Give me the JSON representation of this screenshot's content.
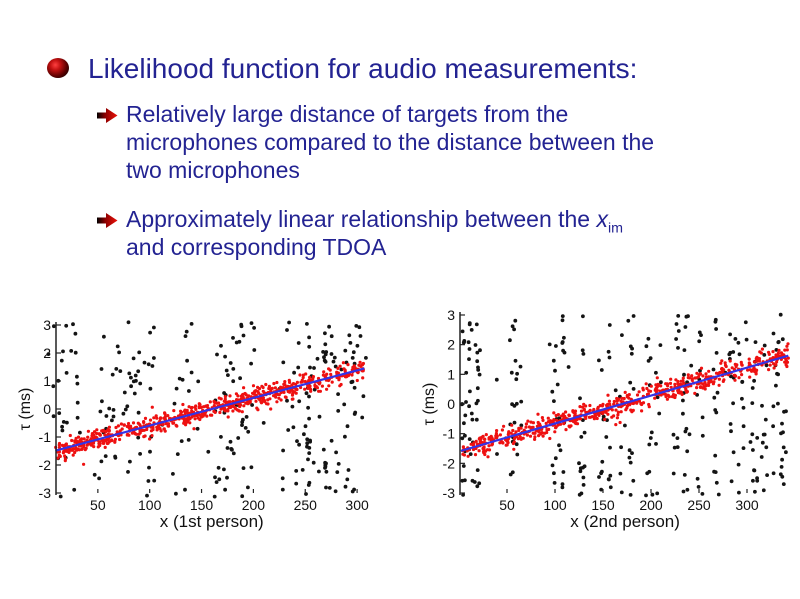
{
  "slide": {
    "background_color": "#ffffff",
    "text_color": "#232392",
    "title": "Likelihood function for audio measurements:",
    "bullets": [
      {
        "lines": [
          "Relatively large distance of targets from the",
          "microphones compared to the distance between the",
          "two microphones"
        ]
      },
      {
        "line1_prefix": "Approximately linear relationship between the ",
        "line1_var": "x",
        "line1_subscript": "im",
        "line2": "and corresponding TDOA"
      }
    ],
    "sphere_bullet_colors": [
      "#ff4040",
      "#c01010",
      "#5c0000",
      "#000000"
    ],
    "arrow_bullet_colors": {
      "tail": "#000000",
      "mid": "#8b0000",
      "head": "#ee1109"
    }
  },
  "chart_data": [
    {
      "type": "scatter",
      "title": "",
      "xlabel": "x (1st person)",
      "ylabel": "τ (ms)",
      "xlim": [
        0,
        310
      ],
      "ylim": [
        -3,
        3
      ],
      "xticks": [
        50,
        100,
        150,
        200,
        250,
        300
      ],
      "yticks": [
        3,
        2,
        1,
        0,
        -1,
        -2,
        -3
      ],
      "grid": false,
      "legend": "none",
      "series": [
        {
          "name": "clutter / spurious TDOA measurements",
          "marker": "dot",
          "color": "#141414",
          "count": 240,
          "y_range": [
            -3.15,
            3.1
          ],
          "cluster_centers": [
            12,
            20,
            30,
            56,
            66,
            76,
            86,
            100,
            126,
            136,
            166,
            176,
            186,
            196,
            230,
            240,
            250,
            258,
            266,
            274,
            284,
            294,
            302
          ],
          "cluster_x_jitter": 5,
          "extra_uniform_points": 30
        },
        {
          "name": "TDOA measurements of target (approx. linear in x)",
          "marker": "dot",
          "color": "#ee1111",
          "count": 680,
          "x_range": [
            9,
            307
          ],
          "trend_slope": 0.00987,
          "trend_intercept": -1.58,
          "noise_std": 0.17
        }
      ],
      "fit_line": {
        "color": "#3333e6",
        "x0": 9,
        "y0": -1.49,
        "x1": 307,
        "y1": 1.45
      }
    },
    {
      "type": "scatter",
      "title": "",
      "xlabel": "x (2nd person)",
      "ylabel": "τ (ms)",
      "xlim": [
        0,
        345
      ],
      "ylim": [
        -3,
        3
      ],
      "xticks": [
        50,
        100,
        150,
        200,
        250,
        300
      ],
      "yticks": [
        3,
        2,
        1,
        0,
        -1,
        -2,
        -3
      ],
      "grid": false,
      "legend": "none",
      "series": [
        {
          "name": "clutter / spurious TDOA measurements",
          "marker": "dot",
          "color": "#141414",
          "count": 280,
          "y_range": [
            -3.1,
            3.1
          ],
          "cluster_centers": [
            5,
            12,
            19,
            56,
            63,
            100,
            107,
            128,
            148,
            156,
            170,
            179,
            198,
            208,
            226,
            236,
            251,
            268,
            284,
            294,
            308,
            318,
            330,
            338
          ],
          "cluster_x_jitter": 3,
          "extra_uniform_points": 30
        },
        {
          "name": "TDOA measurements of target (approx. linear in x)",
          "marker": "dot",
          "color": "#ee1111",
          "count": 620,
          "x_range": [
            2,
            343
          ],
          "trend_slope": 0.00941,
          "trend_intercept": -1.6,
          "noise_std": 0.17
        }
      ],
      "fit_line": {
        "color": "#3333e6",
        "x0": 2,
        "y0": -1.58,
        "x1": 343,
        "y1": 1.63
      }
    }
  ]
}
